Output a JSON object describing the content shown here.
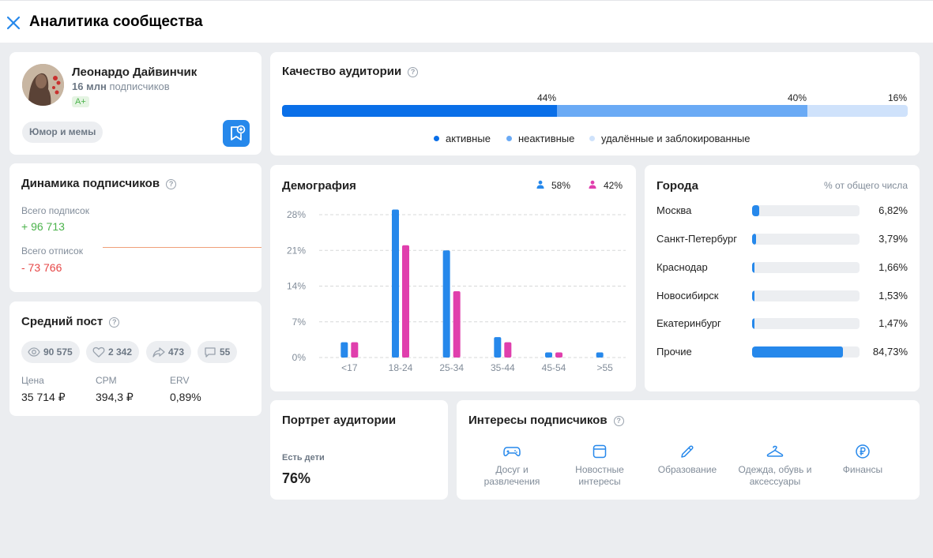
{
  "header": {
    "title": "Аналитика сообщества"
  },
  "profile": {
    "name": "Леонардо Дайвинчик",
    "subs_count": "16 млн",
    "subs_label": "подписчиков",
    "grade": "A+",
    "category": "Юмор и мемы"
  },
  "quality": {
    "title": "Качество аудитории",
    "segments": [
      {
        "label": "активные",
        "percent": 44,
        "percent_label": "44%",
        "color": "#0a6fe8"
      },
      {
        "label": "неактивные",
        "percent": 40,
        "percent_label": "40%",
        "color": "#6aaaf5"
      },
      {
        "label": "удалённые и заблокированные",
        "percent": 16,
        "percent_label": "16%",
        "color": "#cfe2fb"
      }
    ]
  },
  "dynamics": {
    "title": "Динамика подписчиков",
    "subscribed_label": "Всего подписок",
    "subscribed_value": "+ 96 713",
    "unsubscribed_label": "Всего отписок",
    "unsubscribed_value": "- 73 766"
  },
  "avg_post": {
    "title": "Средний пост",
    "views": "90 575",
    "likes": "2 342",
    "reposts": "473",
    "comments": "55",
    "price_label": "Цена",
    "price_value": "35 714 ₽",
    "cpm_label": "CPM",
    "cpm_value": "394,3 ₽",
    "erv_label": "ERV",
    "erv_value": "0,89%"
  },
  "demography": {
    "title": "Демография",
    "male_percent": "58%",
    "female_percent": "42%",
    "male_color": "#2688eb",
    "female_color": "#e03fad"
  },
  "chart_data": {
    "type": "bar",
    "categories": [
      "<17",
      "18-24",
      "25-34",
      "35-44",
      "45-54",
      ">55"
    ],
    "series": [
      {
        "name": "58%",
        "values": [
          3,
          29,
          21,
          4,
          1,
          1
        ]
      },
      {
        "name": "42%",
        "values": [
          3,
          22,
          13,
          3,
          1,
          0
        ]
      }
    ],
    "yticks": [
      "28%",
      "21%",
      "14%",
      "7%",
      "0%"
    ],
    "ylim": [
      0,
      28
    ],
    "grid": true
  },
  "cities": {
    "title": "Города",
    "subtitle": "% от общего числа",
    "items": [
      {
        "name": "Москва",
        "value": "6,82%",
        "fraction": 0.0682
      },
      {
        "name": "Санкт-Петербург",
        "value": "3,79%",
        "fraction": 0.0379
      },
      {
        "name": "Краснодар",
        "value": "1,66%",
        "fraction": 0.0166
      },
      {
        "name": "Новосибирск",
        "value": "1,53%",
        "fraction": 0.0153
      },
      {
        "name": "Екатеринбург",
        "value": "1,47%",
        "fraction": 0.0147
      },
      {
        "name": "Прочие",
        "value": "84,73%",
        "fraction": 0.8473
      }
    ]
  },
  "portrait": {
    "title": "Портрет аудитории",
    "label": "Есть дети",
    "value": "76%"
  },
  "interests": {
    "title": "Интересы подписчиков",
    "items": [
      {
        "icon": "gamepad-icon",
        "line1": "Досуг и",
        "line2": "развлечения"
      },
      {
        "icon": "news-icon",
        "line1": "Новостные",
        "line2": "интересы"
      },
      {
        "icon": "pencil-icon",
        "line1": "Образование",
        "line2": ""
      },
      {
        "icon": "hanger-icon",
        "line1": "Одежда, обувь и",
        "line2": "аксессуары"
      },
      {
        "icon": "ruble-icon",
        "line1": "Финансы",
        "line2": ""
      }
    ]
  }
}
